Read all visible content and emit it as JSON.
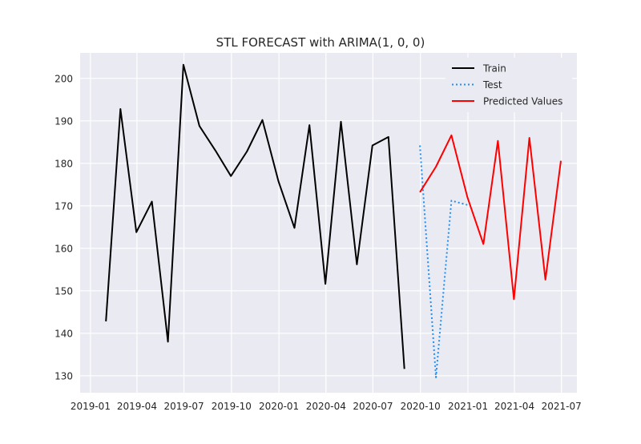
{
  "chart_data": {
    "type": "line",
    "title": "STL FORECAST with ARIMA(1, 0, 0)",
    "xlabel": "",
    "ylabel": "",
    "x_axis_type": "date",
    "xlim": [
      "2018-12-12",
      "2021-07-31"
    ],
    "ylim": [
      126,
      206
    ],
    "grid": true,
    "legend_position": "upper-right",
    "x_ticks": [
      "2019-01-01",
      "2019-04-01",
      "2019-07-01",
      "2019-10-01",
      "2020-01-01",
      "2020-04-01",
      "2020-07-01",
      "2020-10-01",
      "2021-01-01",
      "2021-04-01",
      "2021-07-01"
    ],
    "x_tick_labels": [
      "2019-01",
      "2019-04",
      "2019-07",
      "2019-10",
      "2020-01",
      "2020-04",
      "2020-07",
      "2020-10",
      "2021-01",
      "2021-04",
      "2021-07"
    ],
    "y_ticks": [
      130,
      140,
      150,
      160,
      170,
      180,
      190,
      200
    ],
    "y_tick_labels": [
      "130",
      "140",
      "150",
      "160",
      "170",
      "180",
      "190",
      "200"
    ],
    "series": [
      {
        "name": "Train",
        "color": "#000000",
        "style": "solid",
        "points": [
          [
            "2019-01-31",
            142.8
          ],
          [
            "2019-02-28",
            192.8
          ],
          [
            "2019-03-31",
            163.8
          ],
          [
            "2019-04-30",
            171.0
          ],
          [
            "2019-05-31",
            138.0
          ],
          [
            "2019-06-30",
            203.2
          ],
          [
            "2019-07-31",
            188.8
          ],
          [
            "2019-08-31",
            183.0
          ],
          [
            "2019-09-30",
            177.0
          ],
          [
            "2019-10-31",
            182.8
          ],
          [
            "2019-11-30",
            190.2
          ],
          [
            "2019-12-31",
            175.8
          ],
          [
            "2020-01-31",
            164.8
          ],
          [
            "2020-02-29",
            189.0
          ],
          [
            "2020-03-31",
            151.6
          ],
          [
            "2020-04-30",
            189.8
          ],
          [
            "2020-05-31",
            156.2
          ],
          [
            "2020-06-30",
            184.2
          ],
          [
            "2020-07-31",
            186.2
          ],
          [
            "2020-08-31",
            131.6
          ]
        ]
      },
      {
        "name": "Test",
        "color": "#1f8ff5",
        "style": "dotted",
        "points": [
          [
            "2020-09-30",
            184.2
          ],
          [
            "2020-10-31",
            129.6
          ],
          [
            "2020-11-30",
            171.2
          ],
          [
            "2020-12-31",
            170.2
          ]
        ]
      },
      {
        "name": "Predicted Values",
        "color": "#ff0000",
        "style": "solid",
        "points": [
          [
            "2020-09-30",
            173.2
          ],
          [
            "2020-10-31",
            179.2
          ],
          [
            "2020-11-30",
            186.6
          ],
          [
            "2020-12-31",
            172.0
          ],
          [
            "2021-01-31",
            161.0
          ],
          [
            "2021-02-28",
            185.3
          ],
          [
            "2021-03-31",
            148.0
          ],
          [
            "2021-04-30",
            186.0
          ],
          [
            "2021-05-31",
            152.6
          ],
          [
            "2021-06-30",
            180.6
          ]
        ]
      }
    ]
  }
}
